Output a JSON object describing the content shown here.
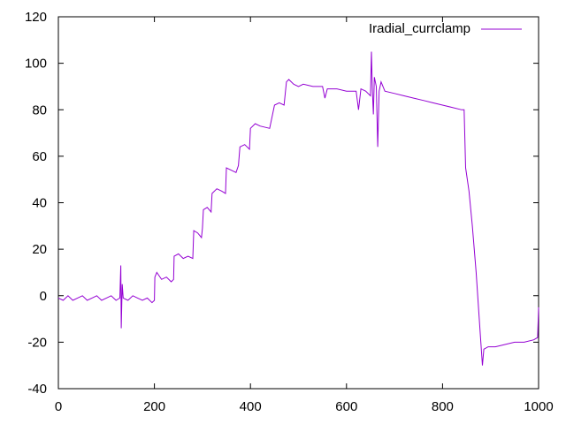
{
  "chart_data": {
    "type": "line",
    "title": "",
    "xlabel": "",
    "ylabel": "",
    "xlim": [
      0,
      1000
    ],
    "ylim": [
      -40,
      120
    ],
    "xticks": [
      0,
      200,
      400,
      600,
      800,
      1000
    ],
    "yticks": [
      -40,
      -20,
      0,
      20,
      40,
      60,
      80,
      100,
      120
    ],
    "grid": false,
    "legend_position": "top-right",
    "series": [
      {
        "name": "Iradial_currclamp",
        "color": "#9400d3",
        "points": [
          [
            0,
            -1
          ],
          [
            10,
            -2
          ],
          [
            20,
            0
          ],
          [
            30,
            -2
          ],
          [
            40,
            -1
          ],
          [
            50,
            0
          ],
          [
            60,
            -2
          ],
          [
            70,
            -1
          ],
          [
            80,
            0
          ],
          [
            90,
            -2
          ],
          [
            100,
            -1
          ],
          [
            110,
            0
          ],
          [
            120,
            -2
          ],
          [
            128,
            -1
          ],
          [
            130,
            13
          ],
          [
            131,
            -14
          ],
          [
            133,
            5
          ],
          [
            135,
            -1
          ],
          [
            145,
            -2
          ],
          [
            155,
            0
          ],
          [
            165,
            -1
          ],
          [
            175,
            -2
          ],
          [
            185,
            -1
          ],
          [
            195,
            -3
          ],
          [
            200,
            -2
          ],
          [
            201,
            8
          ],
          [
            205,
            10
          ],
          [
            215,
            7
          ],
          [
            225,
            8
          ],
          [
            235,
            6
          ],
          [
            240,
            7
          ],
          [
            241,
            17
          ],
          [
            250,
            18
          ],
          [
            260,
            16
          ],
          [
            270,
            17
          ],
          [
            280,
            16
          ],
          [
            282,
            28
          ],
          [
            290,
            27
          ],
          [
            298,
            25
          ],
          [
            300,
            29
          ],
          [
            302,
            37
          ],
          [
            310,
            38
          ],
          [
            318,
            36
          ],
          [
            320,
            44
          ],
          [
            330,
            46
          ],
          [
            340,
            45
          ],
          [
            348,
            44
          ],
          [
            350,
            55
          ],
          [
            360,
            54
          ],
          [
            370,
            53
          ],
          [
            375,
            56
          ],
          [
            378,
            64
          ],
          [
            388,
            65
          ],
          [
            398,
            63
          ],
          [
            400,
            72
          ],
          [
            410,
            74
          ],
          [
            420,
            73
          ],
          [
            440,
            72
          ],
          [
            450,
            82
          ],
          [
            460,
            83
          ],
          [
            470,
            82
          ],
          [
            475,
            92
          ],
          [
            480,
            93
          ],
          [
            490,
            91
          ],
          [
            500,
            90
          ],
          [
            510,
            91
          ],
          [
            530,
            90
          ],
          [
            550,
            90
          ],
          [
            555,
            85
          ],
          [
            560,
            89
          ],
          [
            580,
            89
          ],
          [
            600,
            88
          ],
          [
            620,
            88
          ],
          [
            625,
            80
          ],
          [
            630,
            89
          ],
          [
            640,
            88
          ],
          [
            650,
            86
          ],
          [
            652,
            105
          ],
          [
            654,
            88
          ],
          [
            656,
            78
          ],
          [
            658,
            94
          ],
          [
            662,
            90
          ],
          [
            665,
            64
          ],
          [
            668,
            88
          ],
          [
            672,
            92
          ],
          [
            680,
            88
          ],
          [
            700,
            87
          ],
          [
            720,
            86
          ],
          [
            740,
            85
          ],
          [
            760,
            84
          ],
          [
            780,
            83
          ],
          [
            800,
            82
          ],
          [
            820,
            81
          ],
          [
            840,
            80
          ],
          [
            845,
            80
          ],
          [
            848,
            55
          ],
          [
            855,
            45
          ],
          [
            862,
            30
          ],
          [
            870,
            10
          ],
          [
            878,
            -15
          ],
          [
            883,
            -30
          ],
          [
            886,
            -23
          ],
          [
            895,
            -22
          ],
          [
            910,
            -22
          ],
          [
            930,
            -21
          ],
          [
            950,
            -20
          ],
          [
            970,
            -20
          ],
          [
            990,
            -19
          ],
          [
            998,
            -18
          ],
          [
            1000,
            -5
          ]
        ]
      }
    ]
  }
}
